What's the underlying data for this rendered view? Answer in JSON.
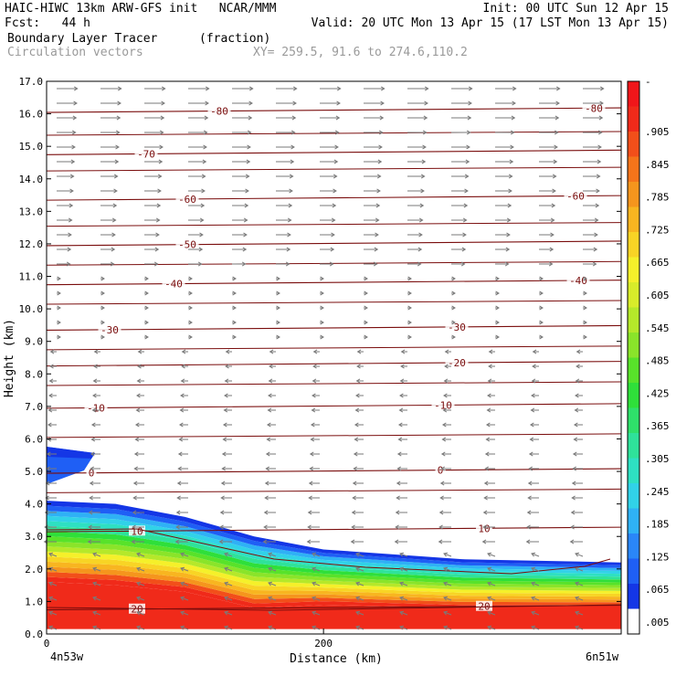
{
  "header": {
    "line1_left": "HAIC-HIWC 13km ARW-GFS init   NCAR/MMM",
    "line1_right": "Init: 00 UTC Sun 12 Apr 15",
    "line2_left": "Fcst:   44 h",
    "line2_right": "Valid: 20 UTC Mon 13 Apr 15 (17 LST Mon 13 Apr 15)",
    "line3_left": "Boundary Layer Tracer",
    "line3_units": "(fraction)",
    "line4_left": "Circulation vectors",
    "line4_xy": "XY= 259.5, 91.6 to 274.6,110.2"
  },
  "colors": {
    "contour": "#7a0d0d",
    "vector": "#7a7a7a",
    "scale": [
      "#ffffff",
      "#1436e6",
      "#1f5ff5",
      "#2a86f8",
      "#2fb1f5",
      "#31d2e8",
      "#2ee0c2",
      "#2fe29a",
      "#2fe06a",
      "#2fdf3a",
      "#58e22a",
      "#8ae42a",
      "#b5e82a",
      "#d8ec2a",
      "#f5f02a",
      "#f8d425",
      "#f8b520",
      "#f5951d",
      "#f5741a",
      "#f24f1a",
      "#f02a1a",
      "#f0161a"
    ]
  },
  "chart_data": {
    "type": "heatmap",
    "title": "Boundary Layer Tracer",
    "units": "(fraction)",
    "overlay": "Circulation vectors",
    "xlabel": "Distance (km)",
    "ylabel": "Height (km)",
    "xlim": [
      0,
      415
    ],
    "ylim": [
      0,
      17
    ],
    "x_ticks": [
      0,
      200
    ],
    "x_end_labels": [
      "4n53w",
      "6n51w"
    ],
    "y_ticks": [
      "0.0",
      "1.0",
      "2.0",
      "3.0",
      "4.0",
      "5.0",
      "6.0",
      "7.0",
      "8.0",
      "9.0",
      "10.0",
      "11.0",
      "12.0",
      "13.0",
      "14.0",
      "15.0",
      "16.0",
      "17.0"
    ],
    "colorbar_labels": [
      "-",
      ".905",
      ".845",
      ".785",
      ".725",
      ".665",
      ".605",
      ".545",
      ".485",
      ".425",
      ".365",
      ".305",
      ".245",
      ".185",
      ".125",
      ".065",
      ".005"
    ],
    "temperature_contours": [
      {
        "label": "-80",
        "height_km": 16.1
      },
      {
        "label": "-70",
        "height_km": 14.8
      },
      {
        "label": "-60",
        "height_km": 13.4
      },
      {
        "label": "-50",
        "height_km": 12.0
      },
      {
        "label": "-40",
        "height_km": 10.8
      },
      {
        "label": "-30",
        "height_km": 9.4
      },
      {
        "label": "-20",
        "height_km": 8.3
      },
      {
        "label": "-10",
        "height_km": 7.0
      },
      {
        "label": "0",
        "height_km": 5.0
      },
      {
        "label": "10",
        "height_km": 3.2
      },
      {
        "label": "20",
        "height_km": 0.8
      }
    ],
    "tracer_layers": [
      {
        "value": 0.005,
        "top_km": [
          4.1,
          4.0,
          3.6,
          3.0,
          2.6,
          2.3,
          2.2
        ]
      },
      {
        "value": 0.365,
        "top_km": [
          3.2,
          3.1,
          2.8,
          1.9,
          1.7,
          1.6,
          1.5
        ]
      },
      {
        "value": 0.905,
        "top_km": [
          1.6,
          1.5,
          1.3,
          0.8,
          0.9,
          0.8,
          0.8
        ]
      }
    ],
    "tracer_x_km": [
      0,
      50,
      100,
      150,
      200,
      300,
      415
    ]
  }
}
